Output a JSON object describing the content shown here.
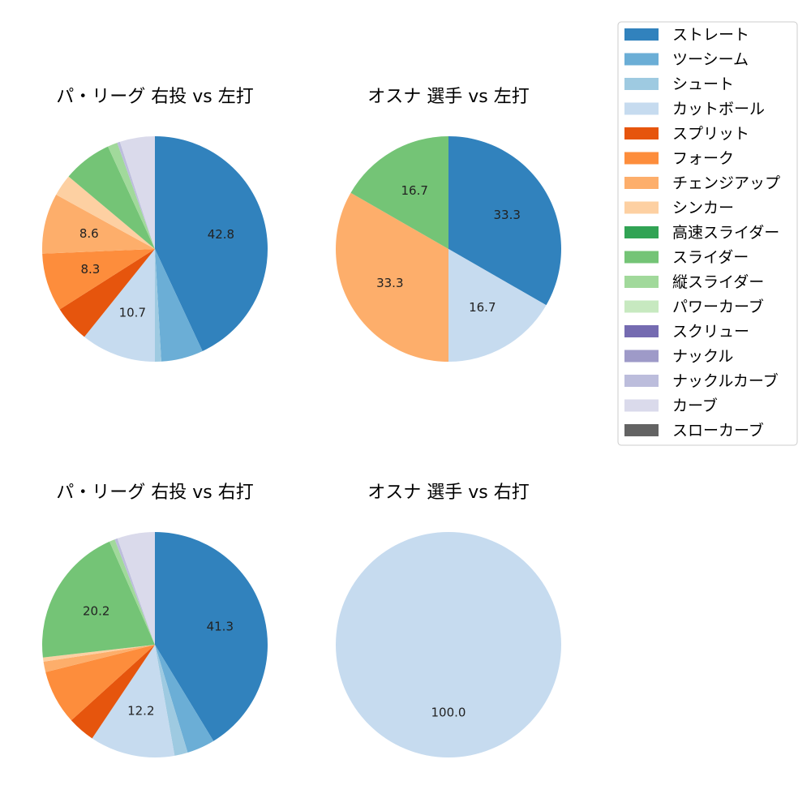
{
  "legend": {
    "items": [
      {
        "label": "ストレート",
        "color": "#3182bd"
      },
      {
        "label": "ツーシーム",
        "color": "#6baed6"
      },
      {
        "label": "シュート",
        "color": "#9ecae1"
      },
      {
        "label": "カットボール",
        "color": "#c6dbef"
      },
      {
        "label": "スプリット",
        "color": "#e6550d"
      },
      {
        "label": "フォーク",
        "color": "#fd8d3c"
      },
      {
        "label": "チェンジアップ",
        "color": "#fdae6b"
      },
      {
        "label": "シンカー",
        "color": "#fdd0a2"
      },
      {
        "label": "高速スライダー",
        "color": "#31a354"
      },
      {
        "label": "スライダー",
        "color": "#74c476"
      },
      {
        "label": "縦スライダー",
        "color": "#a1d99b"
      },
      {
        "label": "パワーカーブ",
        "color": "#c7e9c0"
      },
      {
        "label": "スクリュー",
        "color": "#756bb1"
      },
      {
        "label": "ナックル",
        "color": "#9e9ac8"
      },
      {
        "label": "ナックルカーブ",
        "color": "#bcbddc"
      },
      {
        "label": "カーブ",
        "color": "#dadaeb"
      },
      {
        "label": "スローカーブ",
        "color": "#636363"
      }
    ]
  },
  "chart_data": [
    {
      "type": "pie",
      "title": "パ・リーグ 右投 vs 左打",
      "slices": [
        {
          "label": "ストレート",
          "value": 42.8,
          "text": "42.8"
        },
        {
          "label": "ツーシーム",
          "value": 6.0,
          "text": ""
        },
        {
          "label": "シュート",
          "value": 0.9,
          "text": ""
        },
        {
          "label": "カットボール",
          "value": 10.7,
          "text": "10.7"
        },
        {
          "label": "スプリット",
          "value": 5.2,
          "text": ""
        },
        {
          "label": "フォーク",
          "value": 8.3,
          "text": "8.3"
        },
        {
          "label": "チェンジアップ",
          "value": 8.6,
          "text": "8.6"
        },
        {
          "label": "シンカー",
          "value": 3.1,
          "text": ""
        },
        {
          "label": "スライダー",
          "value": 7.0,
          "text": ""
        },
        {
          "label": "縦スライダー",
          "value": 1.4,
          "text": ""
        },
        {
          "label": "ナックルカーブ",
          "value": 0.4,
          "text": ""
        },
        {
          "label": "カーブ",
          "value": 5.0,
          "text": ""
        }
      ]
    },
    {
      "type": "pie",
      "title": "オスナ 選手 vs 左打",
      "slices": [
        {
          "label": "ストレート",
          "value": 33.3,
          "text": "33.3"
        },
        {
          "label": "カットボール",
          "value": 16.7,
          "text": "16.7"
        },
        {
          "label": "チェンジアップ",
          "value": 33.3,
          "text": "33.3"
        },
        {
          "label": "スライダー",
          "value": 16.7,
          "text": "16.7"
        }
      ]
    },
    {
      "type": "pie",
      "title": "パ・リーグ 右投 vs 右打",
      "slices": [
        {
          "label": "ストレート",
          "value": 41.3,
          "text": "41.3"
        },
        {
          "label": "ツーシーム",
          "value": 4.0,
          "text": ""
        },
        {
          "label": "シュート",
          "value": 1.9,
          "text": ""
        },
        {
          "label": "カットボール",
          "value": 12.2,
          "text": "12.2"
        },
        {
          "label": "スプリット",
          "value": 3.9,
          "text": ""
        },
        {
          "label": "フォーク",
          "value": 7.8,
          "text": ""
        },
        {
          "label": "チェンジアップ",
          "value": 1.5,
          "text": ""
        },
        {
          "label": "シンカー",
          "value": 0.6,
          "text": ""
        },
        {
          "label": "スライダー",
          "value": 20.2,
          "text": "20.2"
        },
        {
          "label": "縦スライダー",
          "value": 0.8,
          "text": ""
        },
        {
          "label": "ナックルカーブ",
          "value": 0.4,
          "text": ""
        },
        {
          "label": "カーブ",
          "value": 5.4,
          "text": ""
        }
      ]
    },
    {
      "type": "pie",
      "title": "オスナ 選手 vs 右打",
      "slices": [
        {
          "label": "カットボール",
          "value": 100.0,
          "text": "100.0"
        }
      ]
    }
  ]
}
